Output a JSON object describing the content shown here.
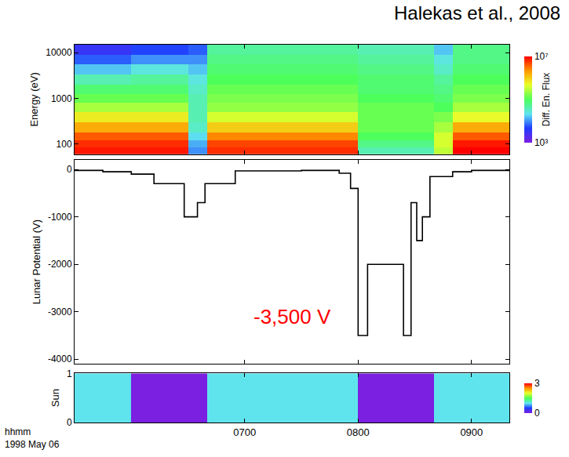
{
  "chart_data": [
    {
      "type": "heatmap",
      "title": "Halekas et al., 2008",
      "ylabel": "Energy (eV)",
      "log": "y",
      "grid": false,
      "tick_labels": "y",
      "xlim": [
        "1998-05-06 05:30",
        "1998-05-06 09:20"
      ],
      "xticks": [
        {
          "value": "1998-05-06 07:00",
          "label": "0700"
        },
        {
          "value": "1998-05-06 08:00",
          "label": "0800"
        },
        {
          "value": "1998-05-06 09:00",
          "label": "0900"
        }
      ],
      "ylim": [
        60,
        15000
      ],
      "yticks": [
        100,
        1000,
        10000
      ],
      "x": [
        "1998-05-06 05:35",
        "1998-05-06 05:45",
        "1998-05-06 05:55",
        "1998-05-06 06:05",
        "1998-05-06 06:15",
        "1998-05-06 06:25",
        "1998-05-06 06:35",
        "1998-05-06 06:45",
        "1998-05-06 06:55",
        "1998-05-06 07:05",
        "1998-05-06 07:15",
        "1998-05-06 07:25",
        "1998-05-06 07:35",
        "1998-05-06 07:45",
        "1998-05-06 07:55",
        "1998-05-06 08:05",
        "1998-05-06 08:15",
        "1998-05-06 08:25",
        "1998-05-06 08:35",
        "1998-05-06 08:45",
        "1998-05-06 08:55",
        "1998-05-06 09:05",
        "1998-05-06 09:15"
      ],
      "y_edges": [
        60,
        85,
        120,
        180,
        300,
        500,
        800,
        1250,
        2000,
        3300,
        5500,
        9000,
        15000
      ],
      "cells": [
        [
          7900000.0,
          6300000.0,
          4000000.0,
          1600000.0,
          630000.0,
          250000.0,
          130000.0,
          79000.0,
          40000.0,
          16000.0,
          6300.0,
          3200.0
        ],
        [
          7900000.0,
          6300000.0,
          4000000.0,
          1600000.0,
          630000.0,
          250000.0,
          130000.0,
          79000.0,
          40000.0,
          16000.0,
          6300.0,
          3200.0
        ],
        [
          7900000.0,
          6300000.0,
          4000000.0,
          1600000.0,
          630000.0,
          250000.0,
          130000.0,
          79000.0,
          40000.0,
          16000.0,
          6300.0,
          3200.0
        ],
        [
          7900000.0,
          6300000.0,
          4000000.0,
          1600000.0,
          630000.0,
          250000.0,
          130000.0,
          79000.0,
          50000.0,
          25000.0,
          10000.0,
          5000.0
        ],
        [
          7900000.0,
          6300000.0,
          4000000.0,
          1600000.0,
          630000.0,
          250000.0,
          130000.0,
          79000.0,
          50000.0,
          25000.0,
          10000.0,
          5000.0
        ],
        [
          7900000.0,
          6300000.0,
          4000000.0,
          1600000.0,
          630000.0,
          250000.0,
          130000.0,
          79000.0,
          50000.0,
          25000.0,
          10000.0,
          5000.0
        ],
        [
          10000.0,
          13000.0,
          20000.0,
          32000.0,
          40000.0,
          40000.0,
          40000.0,
          32000.0,
          25000.0,
          16000.0,
          10000.0,
          6300.0
        ],
        [
          6300000.0,
          5000000.0,
          2500000.0,
          1000000.0,
          400000.0,
          200000.0,
          160000.0,
          130000.0,
          100000.0,
          79000.0,
          63000.0,
          50000.0
        ],
        [
          6300000.0,
          5000000.0,
          2500000.0,
          1000000.0,
          400000.0,
          200000.0,
          160000.0,
          130000.0,
          100000.0,
          79000.0,
          63000.0,
          50000.0
        ],
        [
          6300000.0,
          5000000.0,
          2500000.0,
          1000000.0,
          400000.0,
          200000.0,
          160000.0,
          130000.0,
          100000.0,
          79000.0,
          63000.0,
          50000.0
        ],
        [
          6300000.0,
          5000000.0,
          2500000.0,
          1000000.0,
          400000.0,
          200000.0,
          160000.0,
          130000.0,
          100000.0,
          79000.0,
          63000.0,
          50000.0
        ],
        [
          6300000.0,
          5000000.0,
          2500000.0,
          1000000.0,
          400000.0,
          200000.0,
          160000.0,
          130000.0,
          100000.0,
          79000.0,
          63000.0,
          50000.0
        ],
        [
          6300000.0,
          5000000.0,
          2500000.0,
          1000000.0,
          400000.0,
          200000.0,
          160000.0,
          130000.0,
          100000.0,
          79000.0,
          63000.0,
          50000.0
        ],
        [
          6300000.0,
          5000000.0,
          2500000.0,
          1000000.0,
          400000.0,
          200000.0,
          160000.0,
          130000.0,
          100000.0,
          79000.0,
          63000.0,
          50000.0
        ],
        [
          6300000.0,
          5000000.0,
          2500000.0,
          1000000.0,
          400000.0,
          200000.0,
          160000.0,
          130000.0,
          100000.0,
          79000.0,
          63000.0,
          50000.0
        ],
        [
          40000.0,
          63000.0,
          100000.0,
          130000.0,
          130000.0,
          130000.0,
          100000.0,
          79000.0,
          79000.0,
          63000.0,
          50000.0,
          40000.0
        ],
        [
          40000.0,
          63000.0,
          100000.0,
          130000.0,
          130000.0,
          130000.0,
          100000.0,
          79000.0,
          79000.0,
          63000.0,
          50000.0,
          40000.0
        ],
        [
          40000.0,
          63000.0,
          100000.0,
          130000.0,
          130000.0,
          130000.0,
          100000.0,
          79000.0,
          79000.0,
          63000.0,
          50000.0,
          40000.0
        ],
        [
          40000.0,
          63000.0,
          100000.0,
          130000.0,
          130000.0,
          130000.0,
          100000.0,
          79000.0,
          79000.0,
          63000.0,
          50000.0,
          40000.0
        ],
        [
          320000.0,
          400000.0,
          400000.0,
          250000.0,
          160000.0,
          100000.0,
          79000.0,
          63000.0,
          50000.0,
          32000.0,
          25000.0,
          16000.0
        ],
        [
          10000000.0,
          7900000.0,
          4000000.0,
          1600000.0,
          500000.0,
          250000.0,
          160000.0,
          130000.0,
          100000.0,
          79000.0,
          63000.0,
          63000.0
        ],
        [
          10000000.0,
          7900000.0,
          4000000.0,
          1600000.0,
          500000.0,
          250000.0,
          160000.0,
          130000.0,
          100000.0,
          79000.0,
          63000.0,
          63000.0
        ],
        [
          10000000.0,
          7900000.0,
          4000000.0,
          1600000.0,
          500000.0,
          250000.0,
          160000.0,
          130000.0,
          100000.0,
          79000.0,
          63000.0,
          63000.0
        ]
      ],
      "colorbar_title": "Diff. En. Flux",
      "colorbar_range": [
        1000,
        10000000
      ],
      "colorbar_ticks": [
        {
          "value": 10000000,
          "label": "10⁷"
        },
        {
          "value": 1000,
          "label": "10³"
        }
      ]
    },
    {
      "type": "line",
      "ylabel": "Lunar Potential (V)",
      "grid": false,
      "tick_labels": "y",
      "line_style": "step",
      "color": "#000000",
      "xlim": [
        "1998-05-06 05:30",
        "1998-05-06 09:20"
      ],
      "xticks": [
        {
          "value": "1998-05-06 07:00",
          "label": "0700"
        },
        {
          "value": "1998-05-06 08:00",
          "label": "0800"
        },
        {
          "value": "1998-05-06 09:00",
          "label": "0900"
        }
      ],
      "ylim": [
        -4100,
        200
      ],
      "yticks": [
        0,
        -1000,
        -2000,
        -3000,
        -4000
      ],
      "x": [
        "1998-05-06 05:30",
        "1998-05-06 05:45",
        "1998-05-06 06:00",
        "1998-05-06 06:12",
        "1998-05-06 06:28",
        "1998-05-06 06:35",
        "1998-05-06 06:39",
        "1998-05-06 06:55",
        "1998-05-06 07:30",
        "1998-05-06 07:50",
        "1998-05-06 07:56",
        "1998-05-06 08:00",
        "1998-05-06 08:05",
        "1998-05-06 08:24",
        "1998-05-06 08:28",
        "1998-05-06 08:31",
        "1998-05-06 08:34",
        "1998-05-06 08:38",
        "1998-05-06 08:50",
        "1998-05-06 09:00",
        "1998-05-06 09:20"
      ],
      "values": [
        -20,
        -50,
        -100,
        -300,
        -1000,
        -700,
        -300,
        -30,
        -20,
        -80,
        -400,
        -3500,
        -2000,
        -3500,
        -700,
        -1500,
        -1000,
        -150,
        -50,
        -20,
        -20
      ],
      "annotations": [
        {
          "text": "-3,500 V",
          "x": "1998-05-06 07:25",
          "y": -3100,
          "color": "#ff0000"
        }
      ]
    },
    {
      "type": "heatmap",
      "ylabel": "Sun",
      "grid": false,
      "xlim": [
        "1998-05-06 05:30",
        "1998-05-06 09:20"
      ],
      "xticks": [
        {
          "value": "1998-05-06 07:00",
          "label": "0700"
        },
        {
          "value": "1998-05-06 08:00",
          "label": "0800"
        },
        {
          "value": "1998-05-06 09:00",
          "label": "0900"
        }
      ],
      "ylim": [
        0,
        1
      ],
      "yticks": [
        0,
        1
      ],
      "x": [
        "1998-05-06 05:35",
        "1998-05-06 05:45",
        "1998-05-06 05:55",
        "1998-05-06 06:05",
        "1998-05-06 06:15",
        "1998-05-06 06:25",
        "1998-05-06 06:35",
        "1998-05-06 06:45",
        "1998-05-06 06:55",
        "1998-05-06 07:05",
        "1998-05-06 07:15",
        "1998-05-06 07:25",
        "1998-05-06 07:35",
        "1998-05-06 07:45",
        "1998-05-06 07:55",
        "1998-05-06 08:05",
        "1998-05-06 08:15",
        "1998-05-06 08:25",
        "1998-05-06 08:35",
        "1998-05-06 08:45",
        "1998-05-06 08:55",
        "1998-05-06 09:05",
        "1998-05-06 09:15"
      ],
      "values": [
        1,
        1,
        1,
        0,
        0,
        0,
        0,
        1,
        1,
        1,
        1,
        1,
        1,
        1,
        1,
        0,
        0,
        0,
        0,
        1,
        1,
        1,
        1
      ],
      "colorbar_range": [
        0,
        3
      ],
      "colorbar_ticks": [
        0,
        3
      ],
      "annotations": [
        {
          "text": "hhmm"
        },
        {
          "text": "1998 May 06"
        }
      ]
    }
  ]
}
